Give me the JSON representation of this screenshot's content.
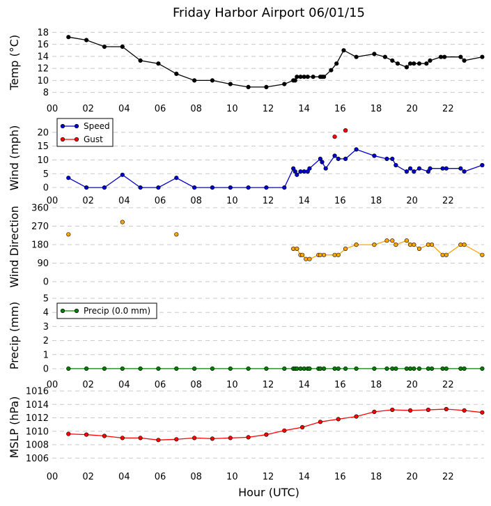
{
  "chart_data": {
    "type": "line",
    "title": "Friday Harbor Airport 06/01/15",
    "xlabel": "Hour (UTC)",
    "x_tick_labels": [
      "00",
      "02",
      "04",
      "06",
      "08",
      "10",
      "12",
      "14",
      "16",
      "18",
      "20",
      "22"
    ],
    "xlim": [
      0,
      24
    ],
    "colors": {
      "temp": "#000000",
      "speed": "#0000cc",
      "gust": "#ff0000",
      "direction": "#ffa500",
      "precip": "#008000",
      "pressure": "#ff0000"
    },
    "panels": [
      {
        "key": "temp",
        "ylabel": "Temp (°C)",
        "ylim": [
          7.5,
          18.5
        ],
        "yticks": [
          "8",
          "10",
          "12",
          "14",
          "16",
          "18"
        ],
        "ytick_values": [
          8,
          10,
          12,
          14,
          16,
          18
        ],
        "series": [
          {
            "color": "#000000",
            "points": [
              [
                0.9,
                17.2
              ],
              [
                1.9,
                16.7
              ],
              [
                2.9,
                15.6
              ],
              [
                3.9,
                15.6
              ],
              [
                4.9,
                13.3
              ],
              [
                5.9,
                12.8
              ],
              [
                6.9,
                11.1
              ],
              [
                7.9,
                10.0
              ],
              [
                8.9,
                10.0
              ],
              [
                9.9,
                9.4
              ],
              [
                10.9,
                8.9
              ],
              [
                11.9,
                8.9
              ],
              [
                12.9,
                9.4
              ],
              [
                13.4,
                10.0
              ],
              [
                13.5,
                10.0
              ],
              [
                13.6,
                10.6
              ],
              [
                13.8,
                10.6
              ],
              [
                14.0,
                10.6
              ],
              [
                14.2,
                10.6
              ],
              [
                14.5,
                10.6
              ],
              [
                14.9,
                10.6
              ],
              [
                15.0,
                10.6
              ],
              [
                15.1,
                10.6
              ],
              [
                15.5,
                11.7
              ],
              [
                15.8,
                12.8
              ],
              [
                16.2,
                15.0
              ],
              [
                16.9,
                13.9
              ],
              [
                17.9,
                14.4
              ],
              [
                18.5,
                13.9
              ],
              [
                18.9,
                13.3
              ],
              [
                19.2,
                12.8
              ],
              [
                19.7,
                12.2
              ],
              [
                19.9,
                12.8
              ],
              [
                20.1,
                12.8
              ],
              [
                20.4,
                12.8
              ],
              [
                20.8,
                12.8
              ],
              [
                21.0,
                13.3
              ],
              [
                21.6,
                13.9
              ],
              [
                21.8,
                13.9
              ],
              [
                22.7,
                13.9
              ],
              [
                22.9,
                13.3
              ],
              [
                23.9,
                13.9
              ]
            ]
          }
        ]
      },
      {
        "key": "wind",
        "ylabel": "Wind (mph)",
        "ylim": [
          -1.5,
          23
        ],
        "yticks": [
          "0",
          "5",
          "10",
          "15",
          "20"
        ],
        "ytick_values": [
          0,
          5,
          10,
          15,
          20
        ],
        "series": [
          {
            "name": "Speed",
            "color": "#0000cc",
            "points": [
              [
                0.9,
                3.5
              ],
              [
                1.9,
                0
              ],
              [
                2.9,
                0
              ],
              [
                3.9,
                4.6
              ],
              [
                4.9,
                0
              ],
              [
                5.9,
                0
              ],
              [
                6.9,
                3.5
              ],
              [
                7.9,
                0
              ],
              [
                8.9,
                0
              ],
              [
                9.9,
                0
              ],
              [
                10.9,
                0
              ],
              [
                11.9,
                0
              ],
              [
                12.9,
                0
              ],
              [
                13.4,
                6.9
              ],
              [
                13.5,
                5.8
              ],
              [
                13.6,
                4.6
              ],
              [
                13.8,
                5.8
              ],
              [
                14.0,
                5.8
              ],
              [
                14.2,
                5.8
              ],
              [
                14.3,
                6.9
              ],
              [
                14.9,
                10.4
              ],
              [
                15.0,
                9.2
              ],
              [
                15.2,
                6.9
              ],
              [
                15.7,
                11.5
              ],
              [
                15.9,
                10.4
              ],
              [
                16.3,
                10.4
              ],
              [
                16.9,
                13.8
              ],
              [
                17.9,
                11.5
              ],
              [
                18.6,
                10.4
              ],
              [
                18.9,
                10.4
              ],
              [
                19.1,
                8.1
              ],
              [
                19.7,
                5.8
              ],
              [
                19.9,
                6.9
              ],
              [
                20.1,
                5.8
              ],
              [
                20.4,
                6.9
              ],
              [
                20.9,
                5.8
              ],
              [
                21.0,
                6.9
              ],
              [
                21.7,
                6.9
              ],
              [
                21.9,
                6.9
              ],
              [
                22.7,
                6.9
              ],
              [
                22.9,
                5.8
              ],
              [
                23.9,
                8.1
              ]
            ]
          },
          {
            "name": "Gust",
            "color": "#ff0000",
            "markers_only": true,
            "points": [
              [
                15.7,
                18.4
              ],
              [
                16.3,
                20.7
              ]
            ]
          }
        ]
      },
      {
        "key": "direction",
        "ylabel": "Wind Direction",
        "ylim": [
          -20,
          360
        ],
        "yticks": [
          "0",
          "90",
          "180",
          "270",
          "360"
        ],
        "ytick_values": [
          0,
          90,
          180,
          270,
          360
        ],
        "series": [
          {
            "color": "#ffa500",
            "markers_only": true,
            "points": [
              [
                0.9,
                230
              ],
              [
                3.9,
                290
              ],
              [
                6.9,
                230
              ]
            ]
          },
          {
            "color": "#ffa500",
            "points": [
              [
                13.4,
                160
              ],
              [
                13.6,
                160
              ],
              [
                13.8,
                130
              ],
              [
                13.9,
                130
              ],
              [
                14.1,
                110
              ],
              [
                14.3,
                110
              ],
              [
                14.8,
                130
              ],
              [
                14.9,
                130
              ],
              [
                15.1,
                130
              ],
              [
                15.7,
                130
              ],
              [
                15.9,
                130
              ],
              [
                16.3,
                160
              ],
              [
                16.9,
                180
              ],
              [
                17.9,
                180
              ],
              [
                18.6,
                200
              ],
              [
                18.9,
                200
              ],
              [
                19.1,
                180
              ],
              [
                19.7,
                200
              ],
              [
                19.9,
                180
              ],
              [
                20.1,
                180
              ],
              [
                20.4,
                160
              ],
              [
                20.9,
                180
              ],
              [
                21.1,
                180
              ],
              [
                21.7,
                130
              ],
              [
                21.9,
                130
              ],
              [
                22.7,
                180
              ],
              [
                22.9,
                180
              ],
              [
                23.9,
                130
              ]
            ]
          }
        ]
      },
      {
        "key": "precip",
        "ylabel": "Precip (mm)",
        "ylim": [
          -0.3,
          5
        ],
        "yticks": [
          "0",
          "1",
          "2",
          "3",
          "4",
          "5"
        ],
        "ytick_values": [
          0,
          1,
          2,
          3,
          4,
          5
        ],
        "series": [
          {
            "name": "Precip (0.0 mm)",
            "color": "#008000",
            "points": [
              [
                0.9,
                0
              ],
              [
                1.9,
                0
              ],
              [
                2.9,
                0
              ],
              [
                3.9,
                0
              ],
              [
                4.9,
                0
              ],
              [
                5.9,
                0
              ],
              [
                6.9,
                0
              ],
              [
                7.9,
                0
              ],
              [
                8.9,
                0
              ],
              [
                9.9,
                0
              ],
              [
                10.9,
                0
              ],
              [
                11.9,
                0
              ],
              [
                12.9,
                0
              ],
              [
                13.4,
                0
              ],
              [
                13.5,
                0
              ],
              [
                13.6,
                0
              ],
              [
                13.8,
                0
              ],
              [
                14.0,
                0
              ],
              [
                14.2,
                0
              ],
              [
                14.3,
                0
              ],
              [
                14.8,
                0
              ],
              [
                14.9,
                0
              ],
              [
                15.1,
                0
              ],
              [
                15.7,
                0
              ],
              [
                15.9,
                0
              ],
              [
                16.3,
                0
              ],
              [
                16.9,
                0
              ],
              [
                17.9,
                0
              ],
              [
                18.6,
                0
              ],
              [
                18.9,
                0
              ],
              [
                19.1,
                0
              ],
              [
                19.7,
                0
              ],
              [
                19.9,
                0
              ],
              [
                20.1,
                0
              ],
              [
                20.4,
                0
              ],
              [
                20.9,
                0
              ],
              [
                21.1,
                0
              ],
              [
                21.7,
                0
              ],
              [
                21.9,
                0
              ],
              [
                22.7,
                0
              ],
              [
                22.9,
                0
              ],
              [
                23.9,
                0
              ]
            ]
          }
        ]
      },
      {
        "key": "pressure",
        "ylabel": "MSLP (hPa)",
        "ylim": [
          1005.2,
          1016
        ],
        "yticks": [
          "1006",
          "1008",
          "1010",
          "1012",
          "1014",
          "1016"
        ],
        "ytick_values": [
          1006,
          1008,
          1010,
          1012,
          1014,
          1016
        ],
        "series": [
          {
            "color": "#ff0000",
            "points": [
              [
                0.9,
                1009.6
              ],
              [
                1.9,
                1009.5
              ],
              [
                2.9,
                1009.3
              ],
              [
                3.9,
                1009.0
              ],
              [
                4.9,
                1009.0
              ],
              [
                5.9,
                1008.7
              ],
              [
                6.9,
                1008.8
              ],
              [
                7.9,
                1009.0
              ],
              [
                8.9,
                1008.9
              ],
              [
                9.9,
                1009.0
              ],
              [
                10.9,
                1009.1
              ],
              [
                11.9,
                1009.5
              ],
              [
                12.9,
                1010.1
              ],
              [
                13.9,
                1010.6
              ],
              [
                14.9,
                1011.4
              ],
              [
                15.9,
                1011.8
              ],
              [
                16.9,
                1012.2
              ],
              [
                17.9,
                1012.9
              ],
              [
                18.9,
                1013.2
              ],
              [
                19.9,
                1013.1
              ],
              [
                20.9,
                1013.2
              ],
              [
                21.9,
                1013.3
              ],
              [
                22.9,
                1013.1
              ],
              [
                23.9,
                1012.8
              ]
            ]
          }
        ]
      }
    ],
    "legends": {
      "wind": [
        {
          "label": "Speed",
          "color": "#0000cc"
        },
        {
          "label": "Gust",
          "color": "#ff0000"
        }
      ],
      "precip": [
        {
          "label": "Precip (0.0 mm)",
          "color": "#008000"
        }
      ]
    }
  }
}
